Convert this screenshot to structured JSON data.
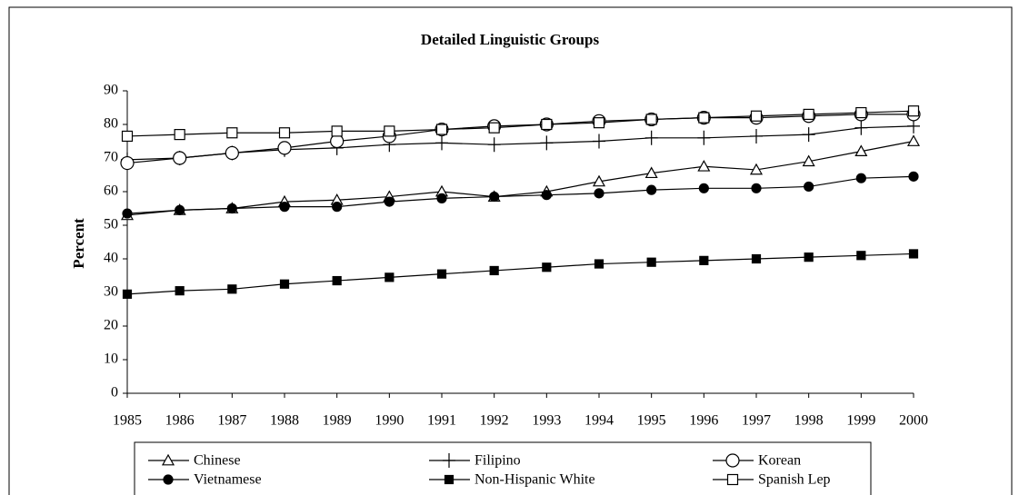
{
  "chart_data": {
    "type": "line",
    "title": "Detailed Linguistic Groups",
    "y_label": "Percent",
    "x": [
      1985,
      1986,
      1987,
      1988,
      1989,
      1990,
      1991,
      1992,
      1993,
      1994,
      1995,
      1996,
      1997,
      1998,
      1999,
      2000
    ],
    "xlim": [
      1985,
      2000
    ],
    "xticks": [
      1985,
      1986,
      1987,
      1988,
      1989,
      1990,
      1991,
      1992,
      1993,
      1994,
      1995,
      1996,
      1997,
      1998,
      1999,
      2000
    ],
    "ylim": [
      0,
      90
    ],
    "yticks": [
      0,
      10,
      20,
      30,
      40,
      50,
      60,
      70,
      80,
      90
    ],
    "grid": false,
    "legend": "bottom",
    "series": [
      {
        "name": "Chinese",
        "color": "#000000",
        "marker": "triangle",
        "values": [
          53,
          54.5,
          55,
          57,
          57.5,
          58.5,
          60,
          58.5,
          60,
          63,
          65.5,
          67.5,
          66.5,
          69,
          72,
          75
        ]
      },
      {
        "name": "Filipino",
        "color": "#000000",
        "marker": "plus",
        "values": [
          69.5,
          70,
          71.5,
          72.5,
          73,
          74,
          74.5,
          74,
          74.5,
          75,
          76,
          76,
          76.5,
          77,
          79,
          79.5
        ]
      },
      {
        "name": "Korean",
        "color": "#000000",
        "marker": "circle",
        "values": [
          68.5,
          70,
          71.5,
          73,
          75,
          76.5,
          78.5,
          79.5,
          80,
          81,
          81.5,
          82,
          82,
          82.5,
          83,
          83
        ]
      },
      {
        "name": "Vietnamese",
        "color": "#000000",
        "marker": "filled-circle",
        "values": [
          53.5,
          54.5,
          55,
          55.5,
          55.5,
          57,
          58,
          58.5,
          59,
          59.5,
          60.5,
          61,
          61,
          61.5,
          64,
          64.5
        ]
      },
      {
        "name": "Non-Hispanic White",
        "color": "#000000",
        "marker": "filled-square",
        "values": [
          29.5,
          30.5,
          31,
          32.5,
          33.5,
          34.5,
          35.5,
          36.5,
          37.5,
          38.5,
          39,
          39.5,
          40,
          40.5,
          41,
          41.5
        ]
      },
      {
        "name": "Spanish Lep",
        "color": "#000000",
        "marker": "square",
        "values": [
          76.5,
          77,
          77.5,
          77.5,
          78,
          78,
          78.5,
          79,
          80,
          80.5,
          81.5,
          82,
          82.5,
          83,
          83.5,
          84
        ]
      }
    ]
  }
}
